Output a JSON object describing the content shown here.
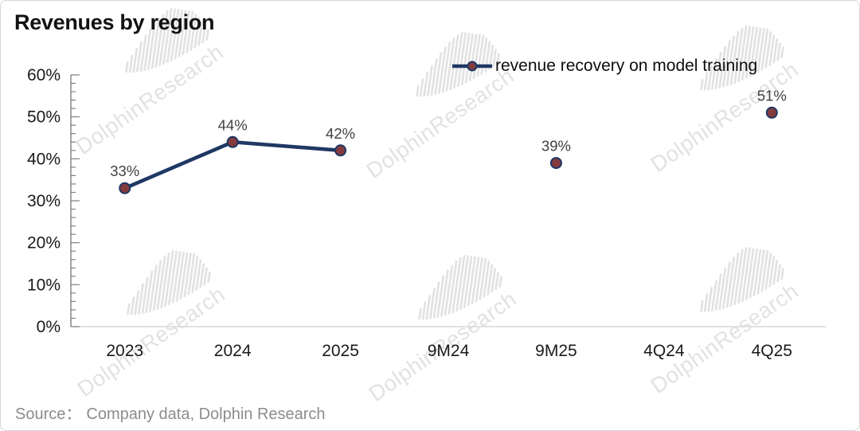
{
  "window": {
    "title": "Revenues by region"
  },
  "legend": {
    "label": "revenue recovery on model training"
  },
  "source": {
    "label": "Source：",
    "text": "Company data, Dolphin Research"
  },
  "watermark": {
    "text": "DolphinResearch"
  },
  "colors": {
    "line": "#1f3864",
    "marker_fill": "#833b3e",
    "marker_stroke": "#1f3864",
    "data_label": "#404040",
    "axis": "#7f7f7f",
    "x_axis_line": "#d9d9d9",
    "tick_label": "#1a1a1a",
    "title": "#121212",
    "source": "#8c8c8c",
    "watermark": "#e2e2e2"
  },
  "chart_data": {
    "type": "line",
    "title": "Revenues by region",
    "categories": [
      "2023",
      "2024",
      "2025",
      "9M24",
      "9M25",
      "4Q24",
      "4Q25"
    ],
    "series": [
      {
        "name": "revenue recovery on model training",
        "values": [
          33,
          44,
          42,
          null,
          39,
          null,
          51
        ],
        "data_labels": [
          "33%",
          "44%",
          "42%",
          null,
          "39%",
          null,
          "51%"
        ]
      }
    ],
    "xlabel": "",
    "ylabel": "",
    "ylim": [
      0,
      60
    ],
    "y_tick_step": 10,
    "y_minor_tick_step": 2,
    "y_tick_labels": [
      "0%",
      "10%",
      "20%",
      "30%",
      "40%",
      "50%",
      "60%"
    ],
    "grid": false,
    "legend_position": "top-right",
    "marker": "circle",
    "connect_gaps": false
  }
}
